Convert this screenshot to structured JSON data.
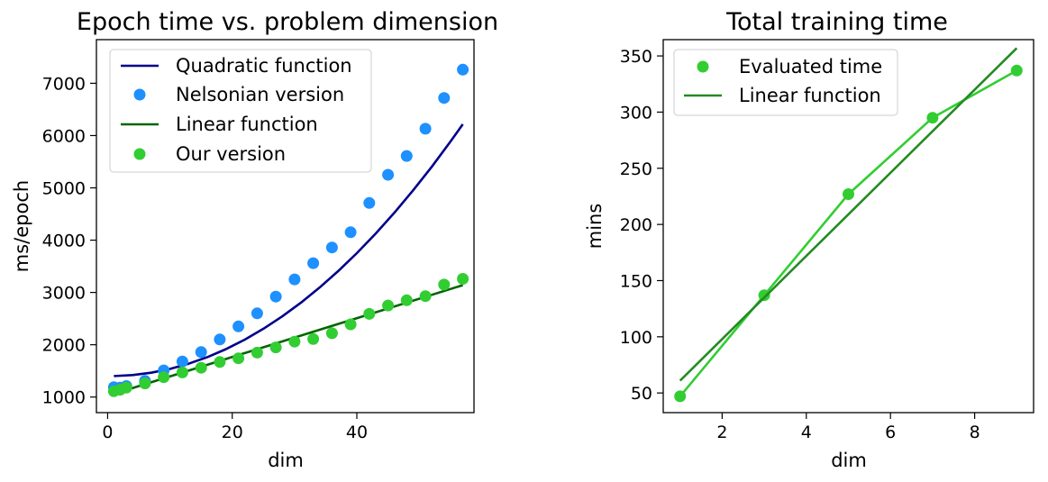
{
  "chart_data": [
    {
      "type": "scatter+line",
      "title": "Epoch time vs. problem dimension",
      "xlabel": "dim",
      "ylabel": "ms/epoch",
      "xlim": [
        -1.8,
        58.8
      ],
      "ylim": [
        702,
        7834
      ],
      "xticks": [
        0,
        20,
        40
      ],
      "yticks": [
        1000,
        2000,
        3000,
        4000,
        5000,
        6000,
        7000
      ],
      "legend_position": "top-left",
      "series": [
        {
          "name": "Quadratic function",
          "kind": "line",
          "color": "#00008b",
          "x": [
            1,
            4,
            7,
            10,
            13,
            16,
            19,
            22,
            25,
            28,
            31,
            34,
            37,
            40,
            43,
            46,
            49,
            52,
            55,
            57
          ],
          "y": [
            1402,
            1420,
            1466,
            1537,
            1637,
            1763,
            1916,
            2097,
            2305,
            2540,
            2802,
            3092,
            3409,
            3752,
            4124,
            4522,
            4947,
            5400,
            5880,
            6217
          ]
        },
        {
          "name": "Nelsonian version",
          "kind": "scatter",
          "color": "#1e90ff",
          "x": [
            1,
            2,
            3,
            6,
            9,
            12,
            15,
            18,
            21,
            24,
            27,
            30,
            33,
            36,
            39,
            42,
            45,
            48,
            51,
            54,
            57
          ],
          "y": [
            1190,
            1180,
            1210,
            1310,
            1510,
            1680,
            1860,
            2100,
            2350,
            2600,
            2920,
            3250,
            3560,
            3860,
            4150,
            4710,
            5250,
            5610,
            6130,
            6720,
            7260
          ]
        },
        {
          "name": "Linear function",
          "kind": "line",
          "color": "#006400",
          "x": [
            1,
            57
          ],
          "y": [
            1060,
            3140
          ]
        },
        {
          "name": "Our version",
          "kind": "scatter",
          "color": "#32cd32",
          "x": [
            1,
            2,
            3,
            6,
            9,
            12,
            15,
            18,
            21,
            24,
            27,
            30,
            33,
            36,
            39,
            42,
            45,
            48,
            51,
            54,
            57
          ],
          "y": [
            1110,
            1140,
            1180,
            1260,
            1380,
            1470,
            1560,
            1670,
            1740,
            1850,
            1950,
            2060,
            2110,
            2220,
            2390,
            2590,
            2750,
            2850,
            2930,
            3150,
            3260
          ]
        }
      ]
    },
    {
      "type": "scatter+line",
      "title": "Total training time",
      "xlabel": "dim",
      "ylabel": "mins",
      "xlim": [
        0.6,
        9.4
      ],
      "ylim": [
        32.5,
        364.5
      ],
      "xticks": [
        2,
        4,
        6,
        8
      ],
      "yticks": [
        50,
        100,
        150,
        200,
        250,
        300,
        350
      ],
      "legend_position": "top-left",
      "series": [
        {
          "name": "Evaluated time",
          "kind": "scatter+line",
          "color": "#32cd32",
          "x": [
            1,
            3,
            5,
            7,
            9
          ],
          "y": [
            47,
            137,
            227,
            295,
            337
          ]
        },
        {
          "name": "Linear function",
          "kind": "line",
          "color": "#228b22",
          "x": [
            1,
            9
          ],
          "y": [
            61,
            357
          ]
        }
      ]
    }
  ]
}
